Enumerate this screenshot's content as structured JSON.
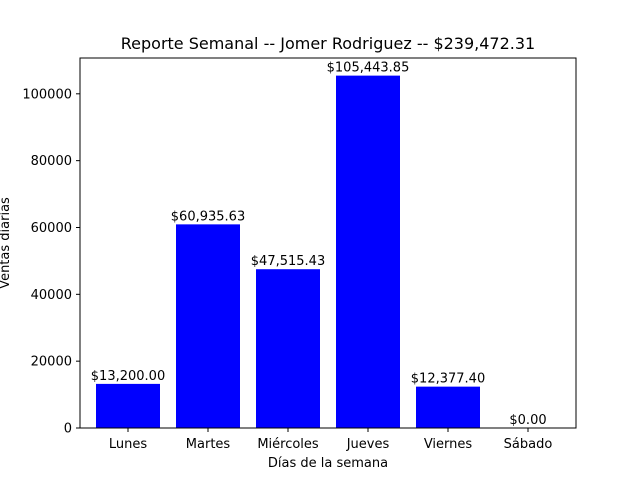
{
  "chart_data": {
    "type": "bar",
    "title": "Reporte Semanal -- Jomer Rodriguez -- $239,472.31",
    "xlabel": "Días de la semana",
    "ylabel": "Ventas diarias",
    "categories": [
      "Lunes",
      "Martes",
      "Miércoles",
      "Jueves",
      "Viernes",
      "Sábado"
    ],
    "values": [
      13200.0,
      60935.63,
      47515.43,
      105443.85,
      12377.4,
      0.0
    ],
    "value_labels": [
      "$13,200.00",
      "$60,935.63",
      "$47,515.43",
      "$105,443.85",
      "$12,377.40",
      "$0.00"
    ],
    "ylim": [
      0,
      110716.04
    ],
    "yticks": [
      0,
      20000,
      40000,
      60000,
      80000,
      100000
    ],
    "ytick_labels": [
      "0",
      "20000",
      "40000",
      "60000",
      "80000",
      "100000"
    ],
    "bar_color": "#0000ff",
    "grid": false,
    "legend": false
  }
}
